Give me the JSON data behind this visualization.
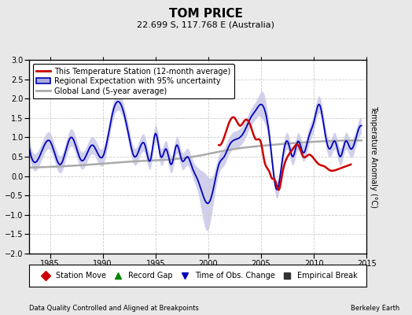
{
  "title": "TOM PRICE",
  "subtitle": "22.699 S, 117.768 E (Australia)",
  "ylabel": "Temperature Anomaly (°C)",
  "xlabel_left": "Data Quality Controlled and Aligned at Breakpoints",
  "xlabel_right": "Berkeley Earth",
  "xlim": [
    1983,
    2015
  ],
  "ylim": [
    -2,
    3
  ],
  "yticks": [
    -2,
    -1.5,
    -1,
    -0.5,
    0,
    0.5,
    1,
    1.5,
    2,
    2.5,
    3
  ],
  "xticks": [
    1985,
    1990,
    1995,
    2000,
    2005,
    2010,
    2015
  ],
  "bg_color": "#e8e8e8",
  "plot_bg_color": "#ffffff",
  "grid_color": "#cccccc",
  "red_color": "#cc0000",
  "blue_color": "#0000bb",
  "blue_fill_color": "#aaaadd",
  "gray_color": "#aaaaaa",
  "title_fontsize": 11,
  "subtitle_fontsize": 8,
  "tick_fontsize": 7,
  "ylabel_fontsize": 7,
  "legend_fontsize": 7,
  "annot_fontsize": 6,
  "legend1_items": [
    {
      "label": "This Temperature Station (12-month average)",
      "color": "#cc0000",
      "lw": 2
    },
    {
      "label": "Regional Expectation with 95% uncertainty",
      "color": "#0000bb",
      "lw": 2
    },
    {
      "label": "Global Land (5-year average)",
      "color": "#aaaaaa",
      "lw": 2
    }
  ],
  "legend2_items": [
    {
      "label": "Station Move",
      "marker": "D",
      "color": "#cc0000"
    },
    {
      "label": "Record Gap",
      "marker": "^",
      "color": "#008800"
    },
    {
      "label": "Time of Obs. Change",
      "marker": "v",
      "color": "#0000bb"
    },
    {
      "label": "Empirical Break",
      "marker": "s",
      "color": "#333333"
    }
  ]
}
